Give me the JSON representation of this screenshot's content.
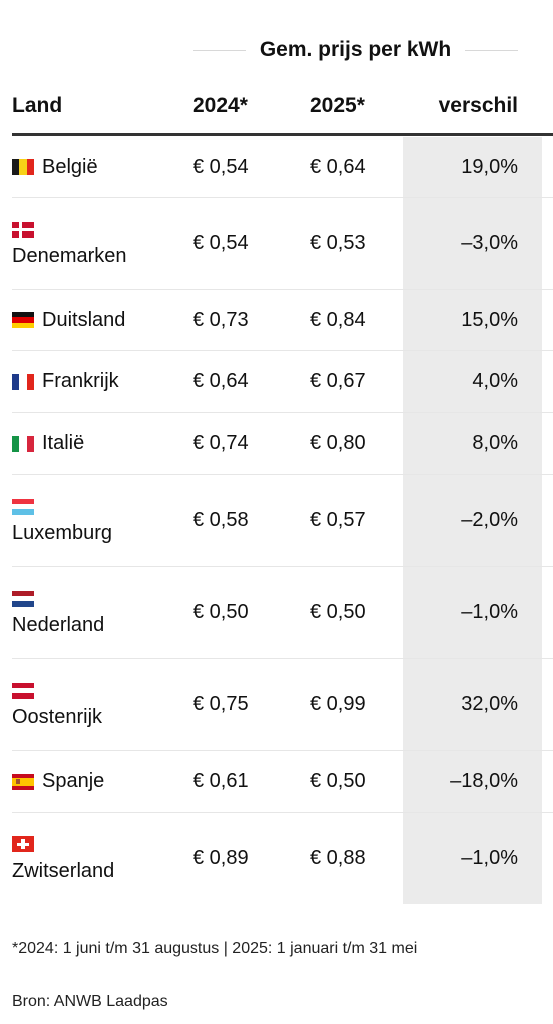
{
  "group_header": "Gem. prijs per kWh",
  "headers": {
    "land": "Land",
    "y2024": "2024*",
    "y2025": "2025*",
    "diff": "verschil"
  },
  "rows": [
    {
      "country": "België",
      "v2024": "€ 0,54",
      "v2025": "€ 0,64",
      "diff": "19,0%",
      "flag_colors": [
        "#1a1a1a",
        "#f7d117",
        "#e1261c"
      ],
      "flag_layout": "vertical"
    },
    {
      "country": "Denemarken",
      "v2024": "€ 0,54",
      "v2025": "€ 0,53",
      "diff": "–3,0%",
      "flag_colors": [
        "#c8102e",
        "#ffffff"
      ],
      "flag_layout": "nordic"
    },
    {
      "country": "Duitsland",
      "v2024": "€ 0,73",
      "v2025": "€ 0,84",
      "diff": "15,0%",
      "flag_colors": [
        "#111111",
        "#dd0000",
        "#ffce00"
      ],
      "flag_layout": "horizontal"
    },
    {
      "country": "Frankrijk",
      "v2024": "€ 0,64",
      "v2025": "€ 0,67",
      "diff": "4,0%",
      "flag_colors": [
        "#1e3a8a",
        "#ffffff",
        "#e1261c"
      ],
      "flag_layout": "vertical"
    },
    {
      "country": "Italië",
      "v2024": "€ 0,74",
      "v2025": "€ 0,80",
      "diff": "8,0%",
      "flag_colors": [
        "#159447",
        "#ffffff",
        "#d7263d"
      ],
      "flag_layout": "vertical"
    },
    {
      "country": "Luxemburg",
      "v2024": "€ 0,58",
      "v2025": "€ 0,57",
      "diff": "–2,0%",
      "flag_colors": [
        "#ef3340",
        "#ffffff",
        "#5ec0e6"
      ],
      "flag_layout": "horizontal"
    },
    {
      "country": "Nederland",
      "v2024": "€ 0,50",
      "v2025": "€ 0,50",
      "diff": "–1,0%",
      "flag_colors": [
        "#ae1c28",
        "#ffffff",
        "#21468b"
      ],
      "flag_layout": "horizontal"
    },
    {
      "country": "Oostenrijk",
      "v2024": "€ 0,75",
      "v2025": "€ 0,99",
      "diff": "32,0%",
      "flag_colors": [
        "#c8102e",
        "#ffffff",
        "#c8102e"
      ],
      "flag_layout": "horizontal"
    },
    {
      "country": "Spanje",
      "v2024": "€ 0,61",
      "v2025": "€ 0,50",
      "diff": "–18,0%",
      "flag_colors": [
        "#c60b1e",
        "#ffc400",
        "#c60b1e"
      ],
      "flag_layout": "spain"
    },
    {
      "country": "Zwitserland",
      "v2024": "€ 0,89",
      "v2025": "€ 0,88",
      "diff": "–1,0%",
      "flag_colors": [
        "#e1261c",
        "#ffffff"
      ],
      "flag_layout": "swiss"
    }
  ],
  "footnote": "*2024: 1 juni t/m 31 augustus | 2025: 1 januari t/m 31 mei",
  "source": "Bron: ANWB Laadpas"
}
